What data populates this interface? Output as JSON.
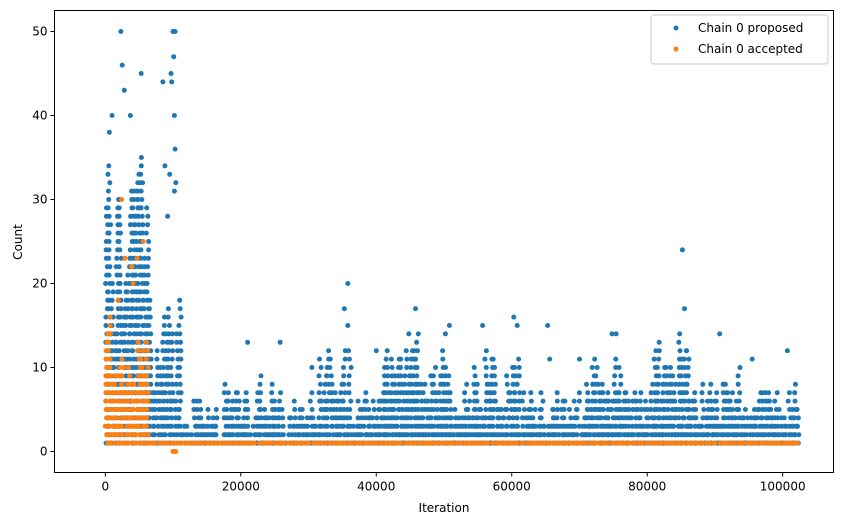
{
  "chart_data": {
    "type": "scatter",
    "title": "",
    "xlabel": "Iteration",
    "ylabel": "Count",
    "xlim": [
      -7500,
      107500
    ],
    "ylim": [
      -2.5,
      52.5
    ],
    "xticks": [
      0,
      20000,
      40000,
      60000,
      80000,
      100000
    ],
    "yticks": [
      0,
      10,
      20,
      30,
      40,
      50
    ],
    "xtick_labels": [
      "0",
      "20000",
      "40000",
      "60000",
      "80000",
      "100000"
    ],
    "ytick_labels": [
      "0",
      "10",
      "20",
      "30",
      "40",
      "50"
    ],
    "grid": false,
    "legend_position": "top-right",
    "series": [
      {
        "name": "Chain 0 proposed",
        "color": "#1f77b4",
        "bursts": [
          {
            "x_start": 0,
            "x_end": 6000,
            "y_max": 38
          },
          {
            "x_start": 6000,
            "x_end": 11000,
            "y_max": 18
          },
          {
            "x_start": 11000,
            "x_end": 102000,
            "y_max": 3
          },
          {
            "x_start": 13000,
            "x_end": 16500,
            "y_max": 6
          },
          {
            "x_start": 17500,
            "x_end": 21000,
            "y_max": 8
          },
          {
            "x_start": 22000,
            "x_end": 26000,
            "y_max": 9
          },
          {
            "x_start": 27000,
            "x_end": 31000,
            "y_max": 7
          },
          {
            "x_start": 31500,
            "x_end": 36000,
            "y_max": 12
          },
          {
            "x_start": 36500,
            "x_end": 41000,
            "y_max": 8
          },
          {
            "x_start": 41000,
            "x_end": 46000,
            "y_max": 13
          },
          {
            "x_start": 46000,
            "x_end": 51000,
            "y_max": 12
          },
          {
            "x_start": 51000,
            "x_end": 56000,
            "y_max": 10
          },
          {
            "x_start": 56000,
            "x_end": 61000,
            "y_max": 13
          },
          {
            "x_start": 61500,
            "x_end": 66000,
            "y_max": 8
          },
          {
            "x_start": 66000,
            "x_end": 71000,
            "y_max": 7
          },
          {
            "x_start": 71000,
            "x_end": 76000,
            "y_max": 12
          },
          {
            "x_start": 76000,
            "x_end": 81000,
            "y_max": 8
          },
          {
            "x_start": 81000,
            "x_end": 86000,
            "y_max": 13
          },
          {
            "x_start": 86000,
            "x_end": 91000,
            "y_max": 8
          },
          {
            "x_start": 91000,
            "x_end": 96000,
            "y_max": 10
          },
          {
            "x_start": 96000,
            "x_end": 102000,
            "y_max": 8
          }
        ],
        "outliers": [
          [
            2300,
            50
          ],
          [
            2500,
            46
          ],
          [
            2800,
            43
          ],
          [
            5300,
            45
          ],
          [
            1000,
            40
          ],
          [
            3700,
            40
          ],
          [
            600,
            38
          ],
          [
            8500,
            44
          ],
          [
            8800,
            34
          ],
          [
            9200,
            28
          ],
          [
            9500,
            33
          ],
          [
            9700,
            45
          ],
          [
            9800,
            44
          ],
          [
            10000,
            50
          ],
          [
            10100,
            47
          ],
          [
            10200,
            40
          ],
          [
            10300,
            50
          ],
          [
            10300,
            36
          ],
          [
            10400,
            32
          ],
          [
            10200,
            31
          ],
          [
            21000,
            13
          ],
          [
            25800,
            13
          ],
          [
            30500,
            10
          ],
          [
            35300,
            17
          ],
          [
            35800,
            20
          ],
          [
            35800,
            15
          ],
          [
            40000,
            12
          ],
          [
            44800,
            14
          ],
          [
            45800,
            17
          ],
          [
            46200,
            14
          ],
          [
            50200,
            14
          ],
          [
            50800,
            15
          ],
          [
            55700,
            15
          ],
          [
            60300,
            16
          ],
          [
            60800,
            15
          ],
          [
            65300,
            15
          ],
          [
            65600,
            11
          ],
          [
            70000,
            11
          ],
          [
            74800,
            14
          ],
          [
            75400,
            14
          ],
          [
            85200,
            24
          ],
          [
            85500,
            17
          ],
          [
            84800,
            14
          ],
          [
            90700,
            14
          ],
          [
            95500,
            11
          ],
          [
            100700,
            12
          ]
        ]
      },
      {
        "name": "Chain 0 accepted",
        "color": "#ff7f0e",
        "bursts": [
          {
            "x_start": 0,
            "x_end": 6000,
            "y_max": 17
          },
          {
            "x_start": 6000,
            "x_end": 102000,
            "y_max": 1
          }
        ],
        "outliers": [
          [
            2400,
            30
          ],
          [
            5600,
            25
          ],
          [
            4700,
            23
          ],
          [
            3900,
            22
          ],
          [
            2900,
            23
          ],
          [
            1900,
            18
          ],
          [
            4100,
            20
          ],
          [
            10000,
            0
          ],
          [
            10200,
            0
          ],
          [
            10400,
            0
          ]
        ]
      }
    ]
  }
}
